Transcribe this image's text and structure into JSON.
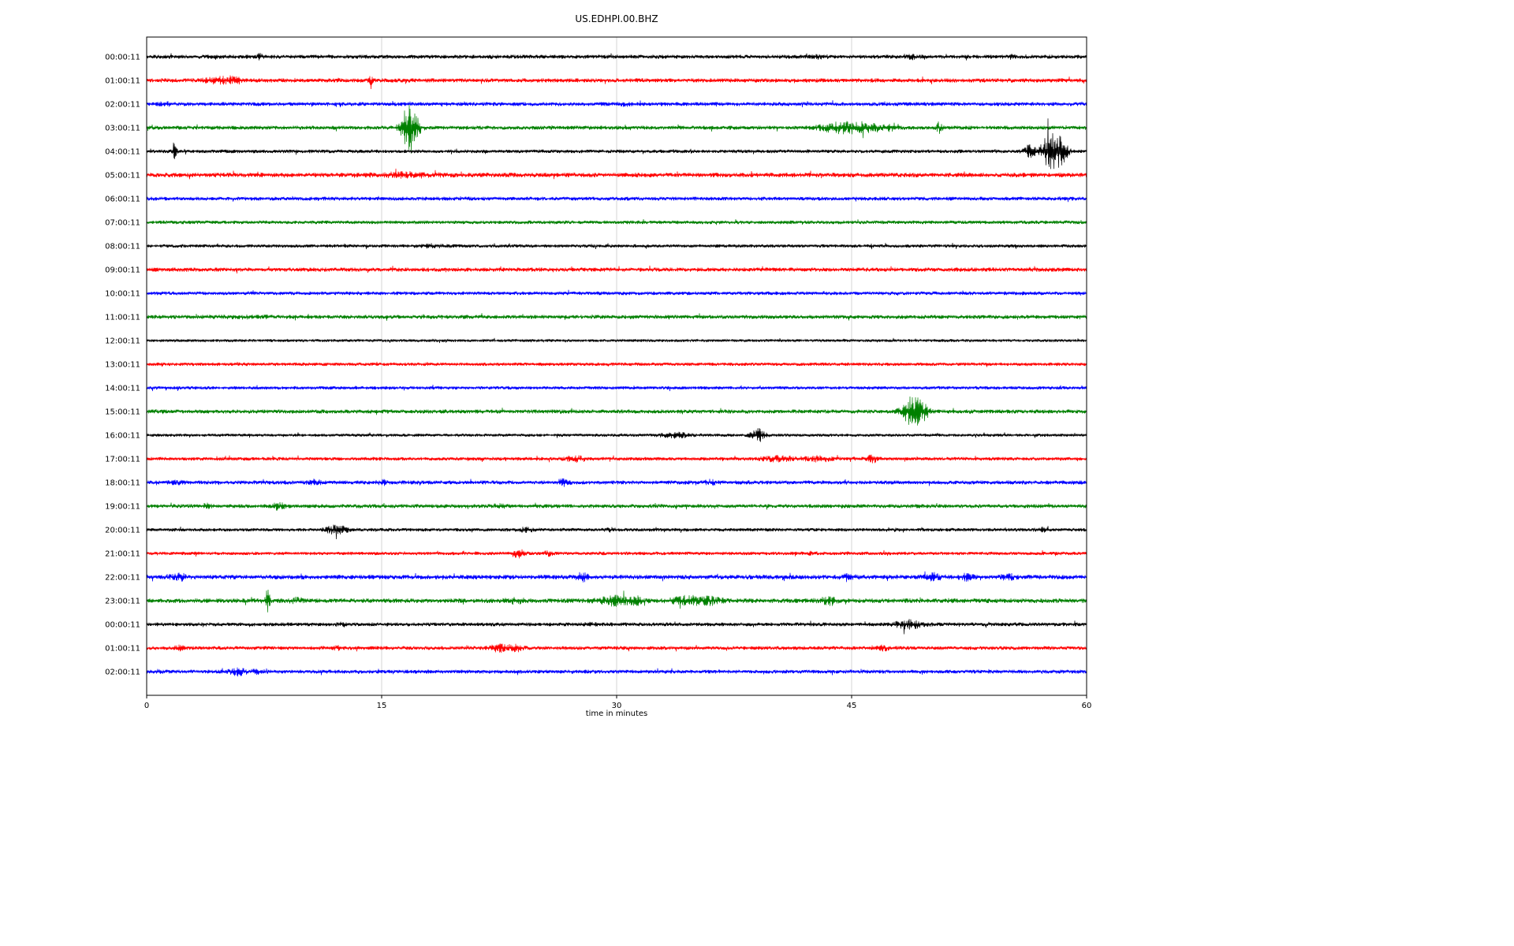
{
  "chart_data": {
    "type": "line",
    "subtype": "helicorder-dayplot-seismogram",
    "title": "US.EDHPI.00.BHZ",
    "xlabel": "time in minutes",
    "x_range_minutes": [
      0,
      60
    ],
    "x_ticks": [
      0,
      15,
      30,
      45,
      60
    ],
    "grid": "vertical gridlines at 15, 30, 45 minutes",
    "row_duration": "1 hour per trace",
    "color_cycle": [
      "#000000",
      "#ff0000",
      "#0000ff",
      "#008000"
    ],
    "traces": [
      {
        "label": "00:00:11",
        "color": "#000000",
        "noise": 1.0,
        "events": [
          [
            7.2,
            2.0,
            0.12
          ],
          [
            43.0,
            1.6,
            0.3
          ],
          [
            48.8,
            1.8,
            0.2
          ],
          [
            55.2,
            1.6,
            0.15
          ]
        ]
      },
      {
        "label": "01:00:11",
        "color": "#ff0000",
        "noise": 1.05,
        "events": [
          [
            4.6,
            2.2,
            0.6
          ],
          [
            5.6,
            2.0,
            0.4
          ],
          [
            14.3,
            2.6,
            0.08
          ]
        ]
      },
      {
        "label": "02:00:11",
        "color": "#0000ff",
        "noise": 1.0,
        "events": [
          [
            1.2,
            1.5,
            0.3
          ],
          [
            30.5,
            1.4,
            0.3
          ]
        ]
      },
      {
        "label": "03:00:11",
        "color": "#008000",
        "noise": 1.0,
        "events": [
          [
            16.8,
            13.0,
            0.35
          ],
          [
            44.3,
            3.2,
            0.9
          ],
          [
            45.8,
            2.6,
            0.6
          ],
          [
            47.2,
            2.2,
            0.5
          ],
          [
            50.6,
            3.5,
            0.12
          ]
        ]
      },
      {
        "label": "04:00:11",
        "color": "#000000",
        "noise": 0.9,
        "events": [
          [
            1.8,
            10.0,
            0.07
          ],
          [
            56.3,
            4.0,
            0.25
          ],
          [
            57.7,
            10.0,
            0.45
          ],
          [
            58.4,
            5.0,
            0.3
          ]
        ]
      },
      {
        "label": "05:00:11",
        "color": "#ff0000",
        "noise": 1.15,
        "events": [
          [
            16.6,
            1.7,
            1.2
          ]
        ]
      },
      {
        "label": "06:00:11",
        "color": "#0000ff",
        "noise": 0.95,
        "events": []
      },
      {
        "label": "07:00:11",
        "color": "#008000",
        "noise": 0.9,
        "events": []
      },
      {
        "label": "08:00:11",
        "color": "#000000",
        "noise": 0.85,
        "events": [
          [
            18.2,
            1.6,
            0.7
          ]
        ]
      },
      {
        "label": "09:00:11",
        "color": "#ff0000",
        "noise": 1.05,
        "events": []
      },
      {
        "label": "10:00:11",
        "color": "#0000ff",
        "noise": 0.9,
        "events": []
      },
      {
        "label": "11:00:11",
        "color": "#008000",
        "noise": 1.0,
        "events": [
          [
            6.0,
            1.3,
            1.5
          ]
        ]
      },
      {
        "label": "12:00:11",
        "color": "#000000",
        "noise": 0.7,
        "events": []
      },
      {
        "label": "13:00:11",
        "color": "#ff0000",
        "noise": 0.85,
        "events": []
      },
      {
        "label": "14:00:11",
        "color": "#0000ff",
        "noise": 0.85,
        "events": []
      },
      {
        "label": "15:00:11",
        "color": "#008000",
        "noise": 1.0,
        "events": [
          [
            48.9,
            8.5,
            0.35
          ],
          [
            49.6,
            4.0,
            0.25
          ],
          [
            48.2,
            2.5,
            0.2
          ]
        ]
      },
      {
        "label": "16:00:11",
        "color": "#000000",
        "noise": 0.75,
        "events": [
          [
            33.8,
            2.6,
            0.7
          ],
          [
            39.0,
            5.0,
            0.3
          ]
        ]
      },
      {
        "label": "17:00:11",
        "color": "#ff0000",
        "noise": 0.9,
        "events": [
          [
            27.4,
            2.4,
            0.4
          ],
          [
            40.3,
            2.2,
            0.8
          ],
          [
            42.8,
            2.2,
            0.6
          ],
          [
            46.3,
            2.6,
            0.25
          ]
        ]
      },
      {
        "label": "18:00:11",
        "color": "#0000ff",
        "noise": 1.0,
        "events": [
          [
            2.0,
            1.6,
            0.3
          ],
          [
            10.7,
            2.2,
            0.25
          ],
          [
            15.0,
            2.0,
            0.2
          ],
          [
            26.6,
            2.4,
            0.25
          ],
          [
            36.0,
            1.8,
            0.25
          ]
        ]
      },
      {
        "label": "19:00:11",
        "color": "#008000",
        "noise": 1.0,
        "events": [
          [
            3.8,
            1.7,
            0.2
          ],
          [
            8.4,
            2.6,
            0.25
          ],
          [
            22.5,
            1.5,
            0.3
          ]
        ]
      },
      {
        "label": "20:00:11",
        "color": "#000000",
        "noise": 0.85,
        "events": [
          [
            12.1,
            3.2,
            0.5
          ],
          [
            24.2,
            2.0,
            0.3
          ],
          [
            29.6,
            1.8,
            0.2
          ],
          [
            47.5,
            1.6,
            0.2
          ],
          [
            57.2,
            2.2,
            0.25
          ]
        ]
      },
      {
        "label": "21:00:11",
        "color": "#ff0000",
        "noise": 0.85,
        "events": [
          [
            23.7,
            3.4,
            0.3
          ],
          [
            25.6,
            2.0,
            0.2
          ],
          [
            42.5,
            1.6,
            0.3
          ]
        ]
      },
      {
        "label": "22:00:11",
        "color": "#0000ff",
        "noise": 1.15,
        "events": [
          [
            2.1,
            2.0,
            0.35
          ],
          [
            27.8,
            2.4,
            0.25
          ],
          [
            44.8,
            1.8,
            0.3
          ],
          [
            50.2,
            2.2,
            0.35
          ],
          [
            52.3,
            2.0,
            0.3
          ],
          [
            55.0,
            2.0,
            0.3
          ]
        ]
      },
      {
        "label": "23:00:11",
        "color": "#008000",
        "noise": 1.15,
        "events": [
          [
            7.7,
            6.0,
            0.1
          ],
          [
            9.6,
            2.0,
            0.3
          ],
          [
            23.5,
            1.8,
            0.4
          ],
          [
            29.9,
            2.6,
            0.7
          ],
          [
            31.2,
            2.2,
            0.4
          ],
          [
            34.6,
            2.6,
            0.7
          ],
          [
            36.1,
            2.2,
            0.4
          ],
          [
            43.4,
            2.4,
            0.4
          ]
        ]
      },
      {
        "label": "00:00:11",
        "color": "#000000",
        "noise": 0.95,
        "events": [
          [
            12.5,
            1.5,
            0.3
          ],
          [
            28.2,
            1.6,
            0.3
          ],
          [
            48.6,
            3.2,
            0.6
          ]
        ]
      },
      {
        "label": "01:00:11",
        "color": "#ff0000",
        "noise": 0.95,
        "events": [
          [
            2.1,
            2.0,
            0.2
          ],
          [
            12.2,
            1.6,
            0.2
          ],
          [
            22.6,
            2.6,
            0.5
          ],
          [
            23.6,
            2.2,
            0.3
          ],
          [
            47.0,
            2.0,
            0.25
          ]
        ]
      },
      {
        "label": "02:00:11",
        "color": "#0000ff",
        "noise": 0.95,
        "events": [
          [
            0.8,
            1.5,
            0.2
          ],
          [
            5.8,
            2.6,
            0.35
          ],
          [
            7.1,
            1.9,
            0.3
          ]
        ]
      }
    ]
  }
}
